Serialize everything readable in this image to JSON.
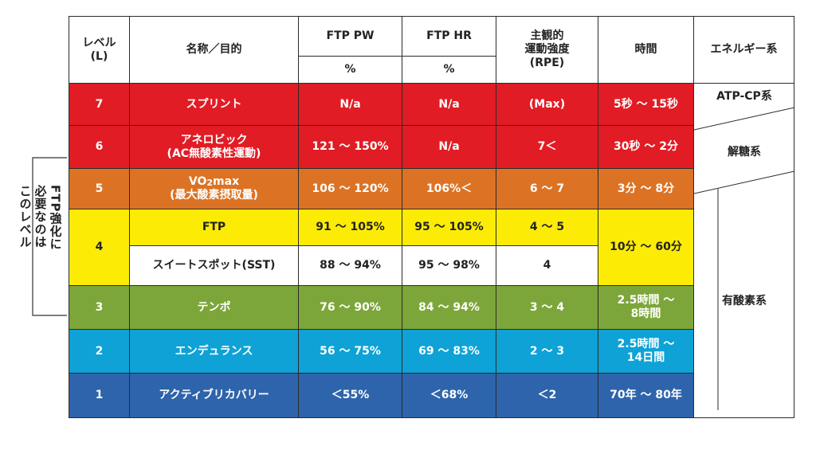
{
  "annotation": {
    "lines": [
      "FTP強化に",
      "必要なのは",
      "このレベル"
    ]
  },
  "headers": {
    "level": "レベル",
    "level_sub": "(L)",
    "name": "名称／目的",
    "ftp_pw": "FTP PW",
    "ftp_hr": "FTP HR",
    "rpe_line1": "主観的",
    "rpe_line2": "運動強度",
    "rpe_line3": "(RPE)",
    "time": "時間",
    "energy": "エネルギー系",
    "pct_pw": "%",
    "pct_hr": "%"
  },
  "rows": [
    {
      "level": "7",
      "name": "スプリント",
      "pw": "N/a",
      "hr": "N/a",
      "rpe": "(Max)",
      "time": "5秒 ～ 15秒"
    },
    {
      "level": "6",
      "name": "アネロビック",
      "name2": "(AC無酸素性運動)",
      "pw": "121 ～ 150%",
      "hr": "N/a",
      "rpe": "7＜",
      "time": "30秒 ～ 2分"
    },
    {
      "level": "5",
      "name_pre": "VO",
      "name_sub": "2",
      "name_post": "max",
      "name2": "(最大酸素摂取量)",
      "pw": "106 ～ 120%",
      "hr": "106%＜",
      "rpe": "6 ～ 7",
      "time": "3分 ～ 8分"
    },
    {
      "level": "4",
      "name": "FTP",
      "pw": "91 ～ 105%",
      "hr": "95 ～ 105%",
      "rpe": "4 ～ 5",
      "time": "10分 ～ 60分"
    },
    {
      "name": "スイートスポット(SST)",
      "pw": "88 ～ 94%",
      "hr": "95 ～ 98%",
      "rpe": "4"
    },
    {
      "level": "3",
      "name": "テンポ",
      "pw": "76 ～ 90%",
      "hr": "84 ～ 94%",
      "rpe": "3 ～ 4",
      "time": "2.5時間 ～",
      "time2": "8時間"
    },
    {
      "level": "2",
      "name": "エンデュランス",
      "pw": "56 ～ 75%",
      "hr": "69 ～ 83%",
      "rpe": "2 ～ 3",
      "time": "2.5時間 ～",
      "time2": "14日間"
    },
    {
      "level": "1",
      "name": "アクティブリカバリー",
      "pw": "＜55%",
      "hr": "＜68%",
      "rpe": "＜2",
      "time": "70年 ～ 80年"
    }
  ],
  "energy": {
    "atp": "ATP-CP系",
    "glycolytic": "解糖系",
    "aerobic": "有酸素系"
  },
  "colors": {
    "red": "#e11c24",
    "orange": "#dc7324",
    "yellow": "#fcec05",
    "green": "#7da63a",
    "cyan": "#0ea2d6",
    "blue": "#2e64ab"
  }
}
